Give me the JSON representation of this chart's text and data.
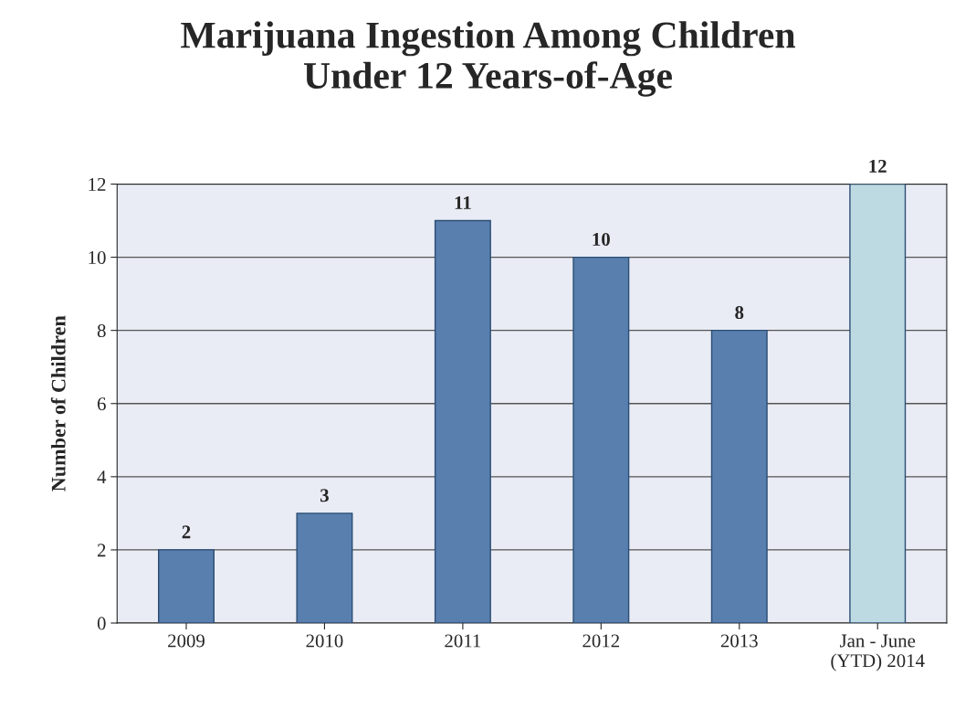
{
  "chart_data": {
    "type": "bar",
    "title": "Marijuana Ingestion Among Children\nUnder 12 Years-of-Age",
    "ylabel": "Number of Children",
    "categories": [
      "2009",
      "2010",
      "2011",
      "2012",
      "2013",
      "Jan - June\n(YTD) 2014"
    ],
    "values": [
      2,
      3,
      11,
      10,
      8,
      12
    ],
    "colors": [
      "#4a7ebb",
      "#4a7ebb",
      "#4a7ebb",
      "#4a7ebb",
      "#4a7ebb",
      "#b7dde8"
    ],
    "ylim": [
      0,
      12
    ],
    "yticks": [
      0,
      2,
      4,
      6,
      8,
      10,
      12
    ],
    "grid": "y",
    "data_labels": true
  }
}
